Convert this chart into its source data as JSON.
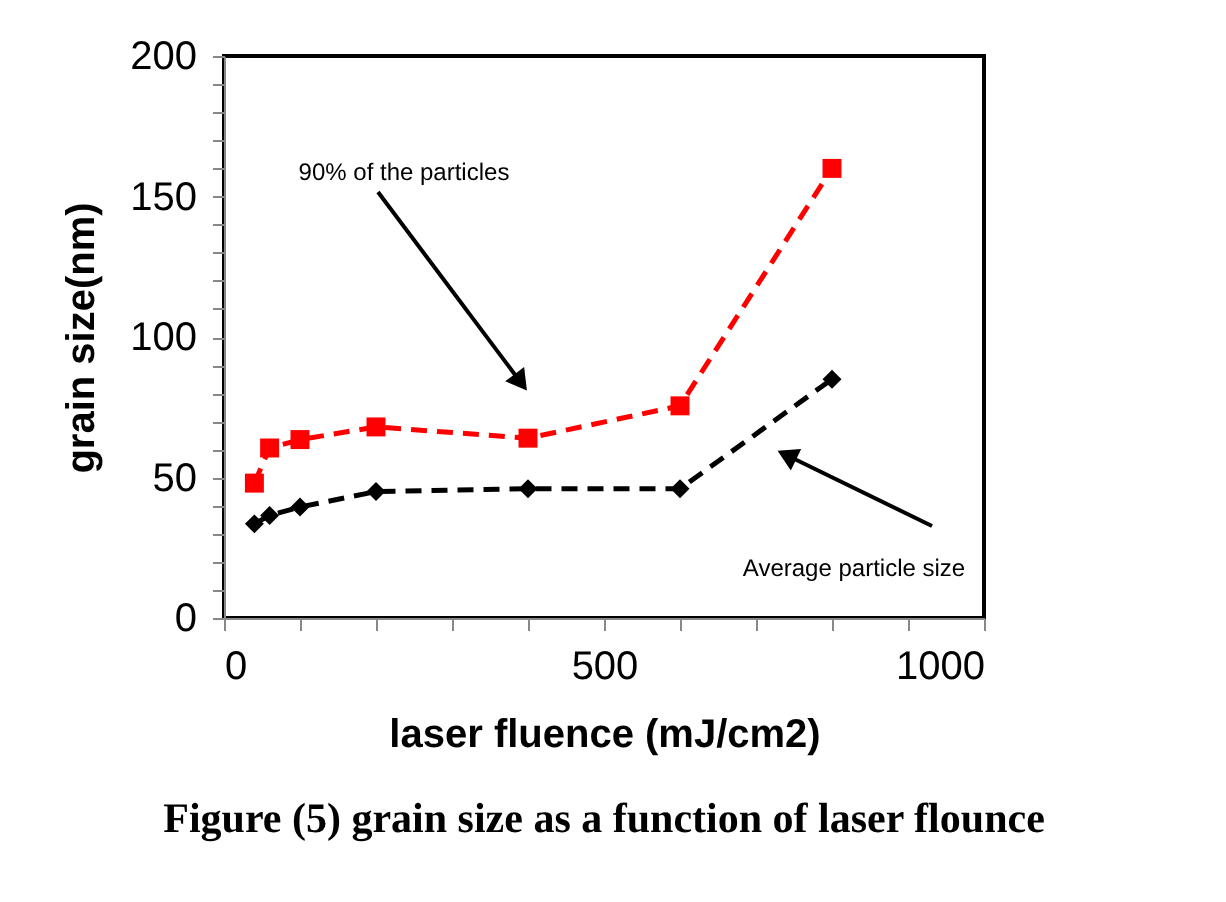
{
  "chart_data": {
    "type": "line",
    "title": "Figure (5) grain size as a function of laser flounce",
    "xlabel": "laser fluence (mJ/cm2)",
    "ylabel": "grain size(nm)",
    "series": [
      {
        "color": "#ff0000",
        "marker": "square",
        "line_style": "dashed",
        "x": [
          40,
          60,
          100,
          200,
          400,
          600,
          800
        ],
        "values": [
          48,
          60.5,
          63.5,
          68,
          64,
          75.5,
          160
        ]
      },
      {
        "color": "#000000",
        "marker": "diamond",
        "line_style": "dashed",
        "x": [
          40,
          60,
          100,
          200,
          400,
          600,
          800
        ],
        "values": [
          33.5,
          36.5,
          39.5,
          45,
          46,
          46,
          85
        ]
      }
    ],
    "annotations": [
      "90% of the particles",
      "Average particle size"
    ],
    "xlim": [
      0,
      1000
    ],
    "ylim": [
      0,
      200
    ],
    "xticks": [
      0,
      {
        "value": 100,
        "label": null
      },
      {
        "value": 200,
        "label": null
      },
      {
        "value": 300,
        "label": null
      },
      {
        "value": 400,
        "label": null
      },
      500,
      {
        "value": 600,
        "label": null
      },
      {
        "value": 700,
        "label": null
      },
      {
        "value": 800,
        "label": null
      },
      {
        "value": 900,
        "label": null
      },
      1000
    ],
    "yticks": [
      0,
      {
        "value": 10,
        "label": null
      },
      {
        "value": 20,
        "label": null
      },
      {
        "value": 30,
        "label": null
      },
      {
        "value": 40,
        "label": null
      },
      50,
      {
        "value": 60,
        "label": null
      },
      {
        "value": 70,
        "label": null
      },
      {
        "value": 80,
        "label": null
      },
      {
        "value": 90,
        "label": null
      },
      100,
      {
        "value": 110,
        "label": null
      },
      {
        "value": 120,
        "label": null
      },
      {
        "value": 130,
        "label": null
      },
      {
        "value": 140,
        "label": null
      },
      150,
      {
        "value": 160,
        "label": null
      },
      {
        "value": 170,
        "label": null
      },
      {
        "value": 180,
        "label": null
      },
      {
        "value": 190,
        "label": null
      },
      200
    ],
    "grid": false
  }
}
